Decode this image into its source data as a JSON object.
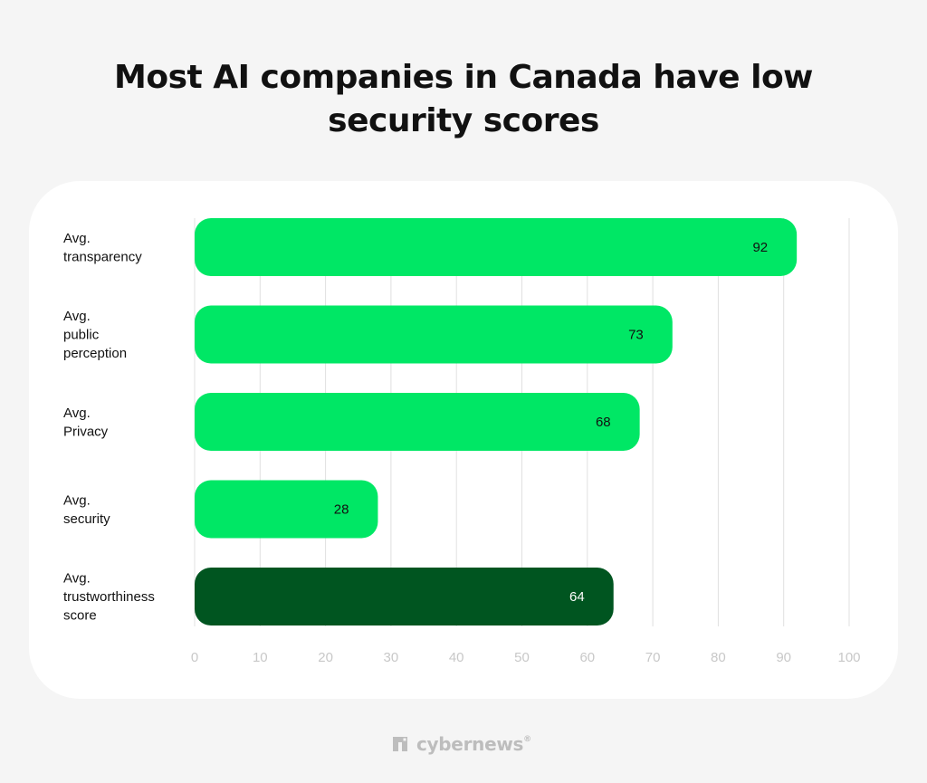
{
  "title": "Most AI companies in Canada have low security scores",
  "brand": {
    "icon": "cybernews-logo-icon",
    "name": "cybernews",
    "mark": "®",
    "color": "#bdbdbd"
  },
  "colors": {
    "bar_default": "#00e765",
    "bar_highlight": "#005520",
    "grid": "#e0e0e0",
    "tick": "#c8c8c8",
    "label": "#111111"
  },
  "chart_data": {
    "type": "bar",
    "orientation": "horizontal",
    "title": "Most AI companies in Canada have low security scores",
    "xlabel": "",
    "ylabel": "",
    "categories": [
      "Avg.\ntransparency",
      "Avg.\npublic\nperception",
      "Avg.\nPrivacy",
      "Avg.\nsecurity",
      "Avg.\ntrustworthiness\nscore"
    ],
    "values": [
      92,
      73,
      68,
      28,
      64
    ],
    "highlight_index": 4,
    "xlim": [
      0,
      100
    ],
    "xticks": [
      0,
      10,
      20,
      30,
      40,
      50,
      60,
      70,
      80,
      90,
      100
    ],
    "grid": true,
    "data_labels": true
  }
}
